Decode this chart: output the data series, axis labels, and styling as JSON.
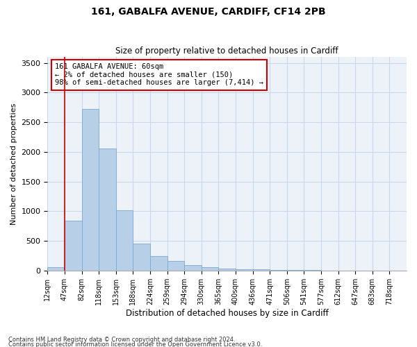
{
  "title1": "161, GABALFA AVENUE, CARDIFF, CF14 2PB",
  "title2": "Size of property relative to detached houses in Cardiff",
  "xlabel": "Distribution of detached houses by size in Cardiff",
  "ylabel": "Number of detached properties",
  "bar_color": "#b8cfe8",
  "bar_edge_color": "#7aaad0",
  "grid_color": "#c8d8ea",
  "bg_color": "#edf2f8",
  "annotation_text": "161 GABALFA AVENUE: 60sqm\n← 2% of detached houses are smaller (150)\n98% of semi-detached houses are larger (7,414) →",
  "annotation_box_color": "#ffffff",
  "annotation_border_color": "#cc0000",
  "red_line_bin": 1,
  "categories": [
    "12sqm",
    "47sqm",
    "82sqm",
    "118sqm",
    "153sqm",
    "188sqm",
    "224sqm",
    "259sqm",
    "294sqm",
    "330sqm",
    "365sqm",
    "400sqm",
    "436sqm",
    "471sqm",
    "506sqm",
    "541sqm",
    "577sqm",
    "612sqm",
    "647sqm",
    "683sqm",
    "718sqm"
  ],
  "values": [
    55,
    840,
    2720,
    2060,
    1010,
    455,
    240,
    160,
    95,
    55,
    30,
    25,
    20,
    10,
    5,
    5,
    2,
    2,
    1,
    1,
    1
  ],
  "ylim": [
    0,
    3600
  ],
  "yticks": [
    0,
    500,
    1000,
    1500,
    2000,
    2500,
    3000,
    3500
  ],
  "footnote1": "Contains HM Land Registry data © Crown copyright and database right 2024.",
  "footnote2": "Contains public sector information licensed under the Open Government Licence v3.0."
}
